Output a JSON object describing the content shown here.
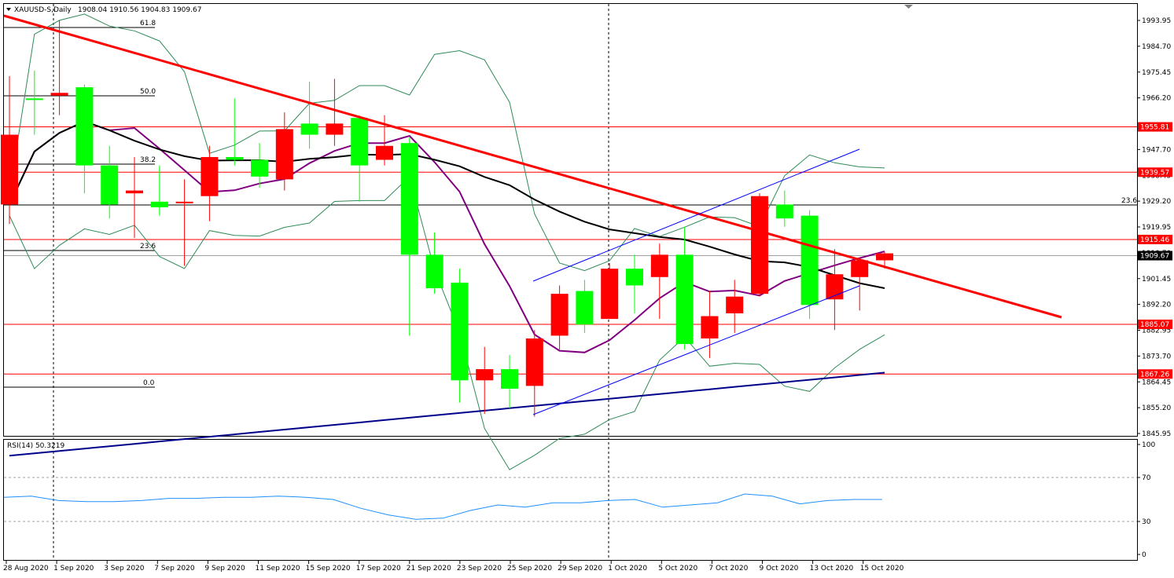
{
  "header": {
    "symbol_label": "XAUUSD-S,Daily",
    "ohlc": "1908.04 1910.56 1904.83 1909.67"
  },
  "rsi_header": "RSI(14) 50.3219",
  "colors": {
    "bull": "#00ff00",
    "bear": "#ff0000",
    "trendline": "#ff0000",
    "channel": "#0000ff",
    "sma_short": "#800080",
    "sma_mid": "#000000",
    "sma_long": "#00008b",
    "bollinger": "#2e8b57",
    "rsi": "#1e90ff",
    "grid": "#000000"
  },
  "chart_data": {
    "type": "candlestick",
    "price_axis_ticks": [
      "1993.95",
      "1984.70",
      "1975.45",
      "1966.20",
      "1947.70",
      "1938.45",
      "1929.20",
      "1919.95",
      "1910.70",
      "1901.45",
      "1892.20",
      "1882.95",
      "1873.70",
      "1864.45",
      "1855.20",
      "1845.95"
    ],
    "date_labels": [
      "28 Aug 2020",
      "1 Sep 2020",
      "3 Sep 2020",
      "7 Sep 2020",
      "9 Sep 2020",
      "11 Sep 2020",
      "15 Sep 2020",
      "17 Sep 2020",
      "21 Sep 2020",
      "23 Sep 2020",
      "25 Sep 2020",
      "29 Sep 2020",
      "1 Oct 2020",
      "5 Oct 2020",
      "7 Oct 2020",
      "9 Oct 2020",
      "13 Oct 2020",
      "15 Oct 2020"
    ],
    "fib_labels": [
      "61.8",
      "50.0",
      "38.2",
      "23.6",
      "0.0",
      "23.6"
    ],
    "level_labels": [
      {
        "label": "1955.81",
        "value": 1955.81
      },
      {
        "label": "1939.57",
        "value": 1939.57
      },
      {
        "label": "1915.46",
        "value": 1915.46
      },
      {
        "label": "1885.07",
        "value": 1885.07
      },
      {
        "label": "1867.26",
        "value": 1867.26
      }
    ],
    "current_price": {
      "label": "1909.67",
      "value": 1909.67
    },
    "candles": [
      {
        "o": 1953.0,
        "h": 1974.0,
        "l": 1921.0,
        "c": 1928.0
      },
      {
        "o": 1966.0,
        "h": 1976.0,
        "l": 1953.0,
        "c": 1966.0
      },
      {
        "o": 1968.0,
        "h": 1994.0,
        "l": 1960.0,
        "c": 1967.0
      },
      {
        "o": 1942.0,
        "h": 1971.0,
        "l": 1932.0,
        "c": 1970.0
      },
      {
        "o": 1928.0,
        "h": 1949.0,
        "l": 1923.0,
        "c": 1942.0
      },
      {
        "o": 1933.0,
        "h": 1945.0,
        "l": 1916.0,
        "c": 1932.0
      },
      {
        "o": 1927.0,
        "h": 1942.0,
        "l": 1924.0,
        "c": 1929.0
      },
      {
        "o": 1929.0,
        "h": 1937.0,
        "l": 1906.0,
        "c": 1928.5
      },
      {
        "o": 1945.0,
        "h": 1949.0,
        "l": 1922.0,
        "c": 1931.0
      },
      {
        "o": 1944.0,
        "h": 1966.0,
        "l": 1942.0,
        "c": 1945.0
      },
      {
        "o": 1938.0,
        "h": 1950.0,
        "l": 1934.0,
        "c": 1944.0
      },
      {
        "o": 1955.0,
        "h": 1961.0,
        "l": 1933.0,
        "c": 1937.0
      },
      {
        "o": 1953.0,
        "h": 1972.0,
        "l": 1948.0,
        "c": 1957.0
      },
      {
        "o": 1957.0,
        "h": 1973.0,
        "l": 1949.0,
        "c": 1953.0
      },
      {
        "o": 1942.0,
        "h": 1960.0,
        "l": 1929.0,
        "c": 1959.0
      },
      {
        "o": 1949.0,
        "h": 1960.0,
        "l": 1942.0,
        "c": 1944.0
      },
      {
        "o": 1910.0,
        "h": 1952.0,
        "l": 1881.0,
        "c": 1950.0
      },
      {
        "o": 1898.0,
        "h": 1918.0,
        "l": 1896.0,
        "c": 1910.0
      },
      {
        "o": 1865.0,
        "h": 1905.0,
        "l": 1857.0,
        "c": 1900.0
      },
      {
        "o": 1869.0,
        "h": 1877.0,
        "l": 1853.0,
        "c": 1865.0
      },
      {
        "o": 1862.0,
        "h": 1874.0,
        "l": 1855.0,
        "c": 1869.0
      },
      {
        "o": 1880.0,
        "h": 1883.0,
        "l": 1852.0,
        "c": 1863.0
      },
      {
        "o": 1896.0,
        "h": 1899.0,
        "l": 1876.0,
        "c": 1881.0
      },
      {
        "o": 1885.0,
        "h": 1901.0,
        "l": 1882.0,
        "c": 1897.0
      },
      {
        "o": 1905.0,
        "h": 1907.0,
        "l": 1887.0,
        "c": 1887.0
      },
      {
        "o": 1899.0,
        "h": 1910.0,
        "l": 1889.0,
        "c": 1905.0
      },
      {
        "o": 1910.0,
        "h": 1914.0,
        "l": 1887.0,
        "c": 1902.0
      },
      {
        "o": 1878.0,
        "h": 1920.0,
        "l": 1876.0,
        "c": 1910.0
      },
      {
        "o": 1888.0,
        "h": 1897.0,
        "l": 1873.0,
        "c": 1880.0
      },
      {
        "o": 1895.0,
        "h": 1901.0,
        "l": 1882.0,
        "c": 1889.0
      },
      {
        "o": 1931.0,
        "h": 1932.0,
        "l": 1895.0,
        "c": 1896.0
      },
      {
        "o": 1923.0,
        "h": 1933.0,
        "l": 1920.0,
        "c": 1928.0
      },
      {
        "o": 1892.0,
        "h": 1926.0,
        "l": 1887.0,
        "c": 1924.0
      },
      {
        "o": 1903.0,
        "h": 1912.0,
        "l": 1883.0,
        "c": 1894.0
      },
      {
        "o": 1908.0,
        "h": 1909.0,
        "l": 1890.0,
        "c": 1902.0
      },
      {
        "o": 1910.5,
        "h": 1911.0,
        "l": 1905.0,
        "c": 1908.0
      }
    ],
    "rsi_levels": [
      "100",
      "70",
      "30",
      "0"
    ],
    "rsi_values": [
      52,
      53,
      49,
      48,
      48,
      49,
      51,
      51,
      52,
      52,
      53,
      52,
      50,
      42,
      36,
      32,
      33,
      40,
      45,
      43,
      47,
      47,
      49,
      50,
      43,
      45,
      47,
      55,
      53,
      46,
      49,
      50,
      50
    ]
  }
}
